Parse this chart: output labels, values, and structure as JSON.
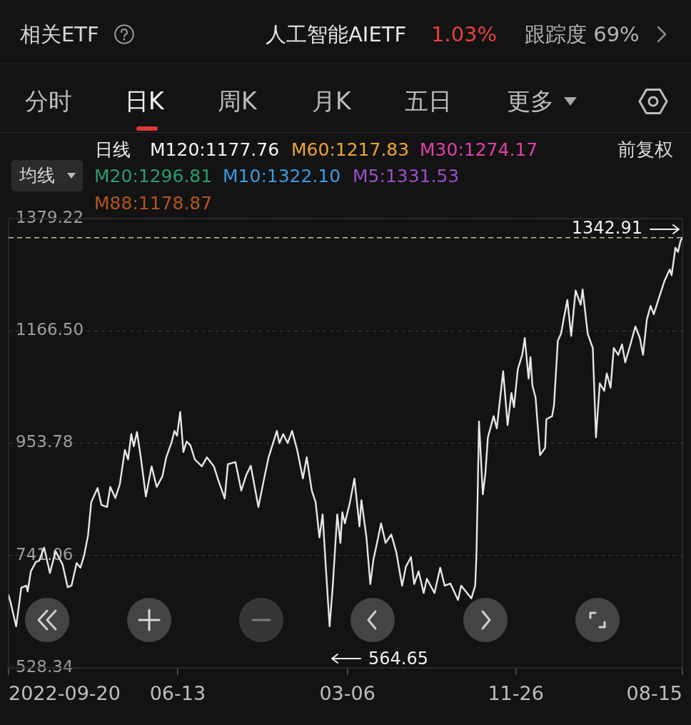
{
  "chart_data": {
    "type": "line",
    "annotations": [
      "相关ETF",
      "人工智能AIETF",
      "1.03%",
      "跟踪度 69%",
      "分时",
      "日K",
      "周K",
      "月K",
      "五日",
      "更多",
      "日线",
      "M120:1177.76",
      "M60:1217.83",
      "M30:1274.17",
      "前复权",
      "均线",
      "M20:1296.81",
      "M10:1322.10",
      "M5:1331.53",
      "M88:1178.87",
      {
        "text": "1342.91",
        "x": "2025-08-15",
        "y": 1342.91
      },
      "564.65"
    ],
    "x": [
      "2022-09-20",
      "2022-09-23",
      "2022-10-02",
      "2022-10-10",
      "2022-10-18",
      "2022-10-20",
      "2022-10-25",
      "2022-11-02",
      "2022-11-07",
      "2022-11-15",
      "2022-11-24",
      "2022-12-03",
      "2022-12-14",
      "2022-12-22",
      "2022-12-28",
      "2023-01-05",
      "2023-01-11",
      "2023-01-17",
      "2023-01-23",
      "2023-01-28",
      "2023-02-07",
      "2023-02-13",
      "2023-02-22",
      "2023-02-27",
      "2023-03-07",
      "2023-03-14",
      "2023-03-22",
      "2023-03-27",
      "2023-04-01",
      "2023-04-05",
      "2023-04-10",
      "2023-04-16",
      "2023-04-24",
      "2023-05-03",
      "2023-05-11",
      "2023-05-20",
      "2023-05-26",
      "2023-06-03",
      "2023-06-08",
      "2023-06-12",
      "2023-06-17",
      "2023-06-22",
      "2023-06-27",
      "2023-07-03",
      "2023-07-10",
      "2023-07-21",
      "2023-07-29",
      "2023-08-09",
      "2023-08-15",
      "2023-08-26",
      "2023-08-31",
      "2023-09-12",
      "2023-09-21",
      "2023-09-29",
      "2023-10-06",
      "2023-10-18",
      "2023-10-27",
      "2023-11-03",
      "2023-11-10",
      "2023-11-16",
      "2023-11-20",
      "2023-11-26",
      "2023-12-03",
      "2023-12-10",
      "2023-12-18",
      "2023-12-27",
      "2024-01-02",
      "2024-01-10",
      "2024-01-16",
      "2024-01-22",
      "2024-01-27",
      "2024-02-01",
      "2024-02-07",
      "2024-02-12",
      "2024-02-19",
      "2024-02-24",
      "2024-02-27",
      "2024-03-02",
      "2024-03-10",
      "2024-03-17",
      "2024-03-25",
      "2024-03-28",
      "2024-04-05",
      "2024-04-11",
      "2024-04-16",
      "2024-04-20",
      "2024-04-28",
      "2024-05-05",
      "2024-05-14",
      "2024-05-22",
      "2024-05-31",
      "2024-06-06",
      "2024-06-14",
      "2024-06-19",
      "2024-06-26",
      "2024-07-04",
      "2024-07-09",
      "2024-07-21",
      "2024-07-30",
      "2024-08-06",
      "2024-08-15",
      "2024-08-27",
      "2024-09-01",
      "2024-09-17",
      "2024-09-23",
      "2024-09-25",
      "2024-09-27",
      "2024-09-29",
      "2024-10-05",
      "2024-10-09",
      "2024-10-13",
      "2024-10-22",
      "2024-10-27",
      "2024-11-06",
      "2024-11-13",
      "2024-11-19",
      "2024-11-23",
      "2024-11-29",
      "2024-12-06",
      "2024-12-10",
      "2024-12-16",
      "2024-12-19",
      "2024-12-22",
      "2024-12-27",
      "2025-01-03",
      "2025-01-11",
      "2025-01-13",
      "2025-01-22",
      "2025-01-25",
      "2025-01-31",
      "2025-02-05",
      "2025-02-10",
      "2025-02-15",
      "2025-02-21",
      "2025-02-28",
      "2025-03-08",
      "2025-03-11",
      "2025-03-19",
      "2025-03-27",
      "2025-04-01",
      "2025-04-07",
      "2025-04-14",
      "2025-04-18",
      "2025-04-24",
      "2025-04-29",
      "2025-05-06",
      "2025-05-12",
      "2025-05-17",
      "2025-05-25",
      "2025-06-02",
      "2025-06-09",
      "2025-06-14",
      "2025-06-20",
      "2025-06-26",
      "2025-07-01",
      "2025-07-09",
      "2025-07-18",
      "2025-07-26",
      "2025-07-29",
      "2025-08-04",
      "2025-08-08",
      "2025-08-12",
      "2025-08-15"
    ],
    "values": [
      666,
      653,
      607,
      680,
      684,
      673,
      711,
      729,
      731,
      756,
      708,
      749,
      724,
      681,
      684,
      727,
      718,
      742,
      779,
      842,
      869,
      837,
      833,
      871,
      850,
      876,
      941,
      923,
      971,
      948,
      975,
      927,
      853,
      910,
      871,
      891,
      927,
      954,
      977,
      968,
      1013,
      937,
      957,
      950,
      923,
      910,
      927,
      910,
      887,
      849,
      914,
      918,
      864,
      894,
      911,
      833,
      887,
      927,
      954,
      977,
      954,
      971,
      954,
      977,
      941,
      887,
      927,
      864,
      842,
      775,
      819,
      720,
      607,
      684,
      819,
      765,
      823,
      802,
      842,
      887,
      796,
      846,
      775,
      687,
      734,
      756,
      802,
      765,
      781,
      747,
      684,
      720,
      738,
      687,
      711,
      670,
      697,
      670,
      718,
      684,
      688,
      657,
      684,
      660,
      684,
      742,
      864,
      995,
      857,
      896,
      965,
      1005,
      982,
      1090,
      988,
      1049,
      1022,
      1094,
      1121,
      1153,
      1076,
      1117,
      1063,
      1040,
      931,
      945,
      999,
      1005,
      1026,
      1148,
      1161,
      1194,
      1225,
      1157,
      1243,
      1216,
      1245,
      1161,
      1134,
      965,
      1067,
      1053,
      1086,
      1059,
      1134,
      1121,
      1141,
      1107,
      1140,
      1175,
      1153,
      1121,
      1188,
      1214,
      1198,
      1229,
      1262,
      1283,
      1272,
      1324,
      1316,
      1337,
      1342.91
    ],
    "color": "#e6e6e6",
    "xlim": [
      "2022-09-20",
      "2025-08-15"
    ],
    "xticks": [
      "2022-09-20",
      {
        "value": "2023-06-13",
        "label": "06-13"
      },
      {
        "value": "2024-03-06",
        "label": "03-06"
      },
      {
        "value": "2024-11-26",
        "label": "11-26"
      },
      {
        "value": "2025-08-15",
        "label": "08-15"
      }
    ],
    "ylim": [
      528.34,
      1379.22
    ],
    "yticks": [
      528.34,
      741.06,
      953.78,
      {
        "value": 1166.5,
        "label": "1166.50"
      },
      1379.22
    ],
    "grid": "y",
    "ref_lines": [
      {
        "axis": "y",
        "value": 1342.91,
        "color": "#cdb99c",
        "line_style": "dashed"
      }
    ]
  }
}
